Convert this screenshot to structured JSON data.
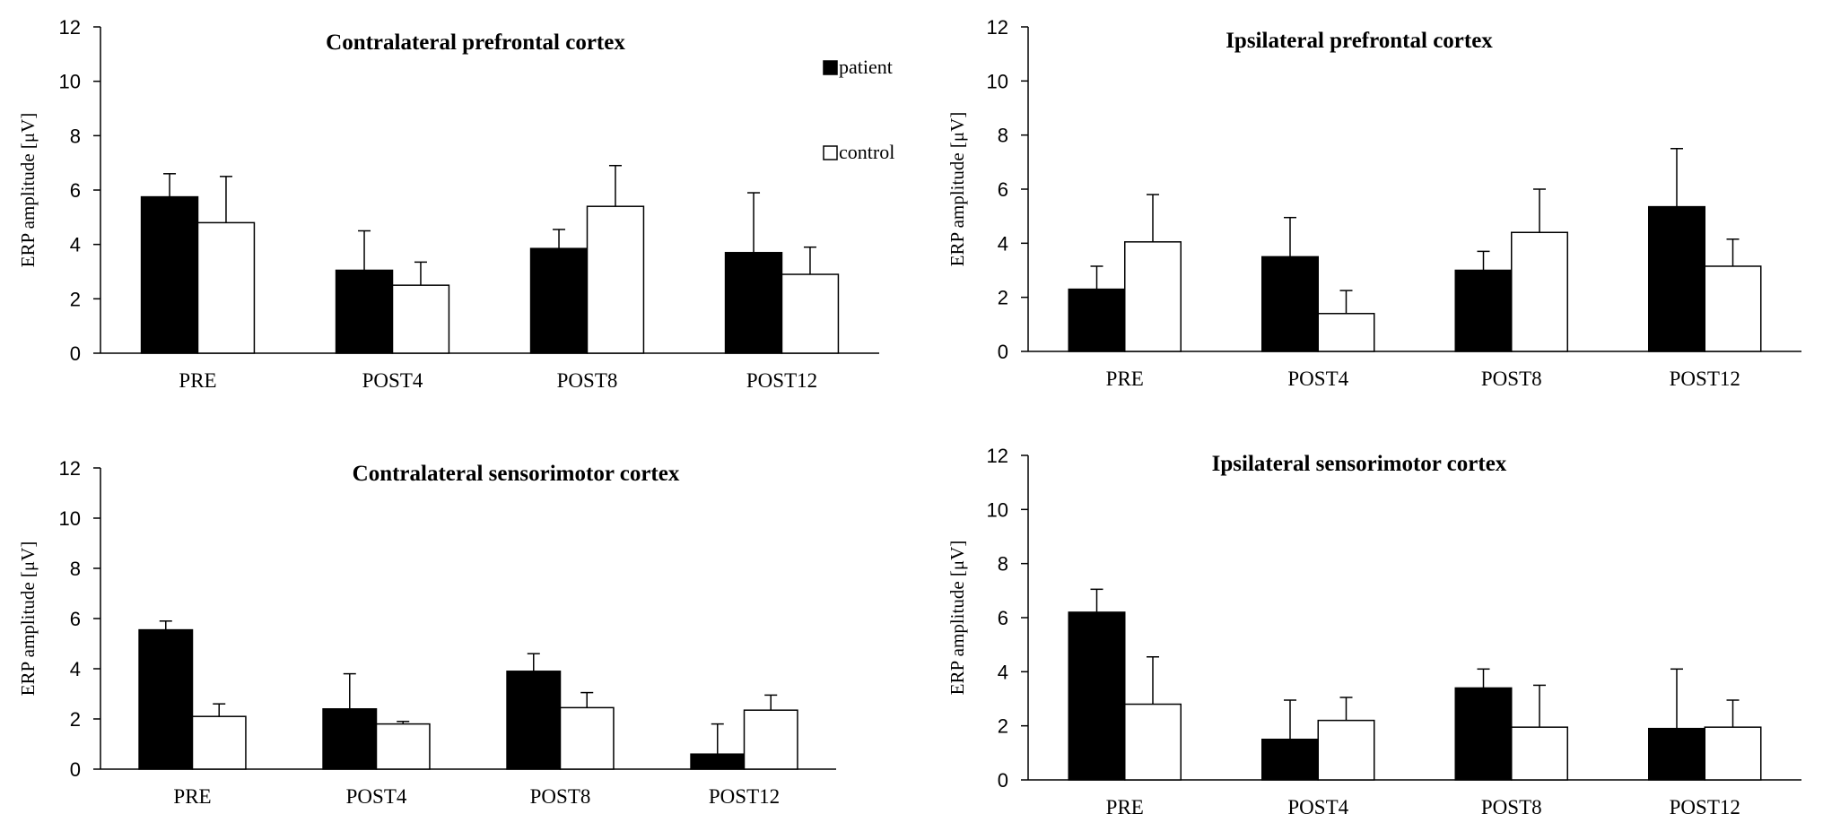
{
  "chart_data": [
    {
      "type": "bar",
      "title": "Contralateral prefrontal cortex",
      "ylabel": "ERP amplitude [μV]",
      "ylim": [
        0,
        12
      ],
      "yticks": [
        "0",
        "2",
        "4",
        "6",
        "8",
        "10",
        "12"
      ],
      "categories": [
        "PRE",
        "POST4",
        "POST8",
        "POST12"
      ],
      "series": [
        {
          "name": "patient",
          "color": "#000000",
          "values": [
            5.75,
            3.05,
            3.85,
            3.7
          ],
          "errors": [
            0.85,
            1.45,
            0.7,
            2.2
          ]
        },
        {
          "name": "control",
          "color": "#ffffff",
          "values": [
            4.8,
            2.5,
            5.4,
            2.9
          ],
          "errors": [
            1.7,
            0.85,
            1.5,
            1.0
          ]
        }
      ],
      "legend": {
        "position": "top-right",
        "entries": [
          "patient",
          "control"
        ]
      }
    },
    {
      "type": "bar",
      "title": "Ipsilateral prefrontal cortex",
      "ylabel": "ERP amplitude [μV]",
      "ylim": [
        0,
        12
      ],
      "yticks": [
        "0",
        "2",
        "4",
        "6",
        "8",
        "10",
        "12"
      ],
      "categories": [
        "PRE",
        "POST4",
        "POST8",
        "POST12"
      ],
      "series": [
        {
          "name": "patient",
          "color": "#000000",
          "values": [
            2.3,
            3.5,
            3.0,
            5.35
          ],
          "errors": [
            0.85,
            1.45,
            0.7,
            2.15
          ]
        },
        {
          "name": "control",
          "color": "#ffffff",
          "values": [
            4.05,
            1.4,
            4.4,
            3.15
          ],
          "errors": [
            1.75,
            0.85,
            1.6,
            1.0
          ]
        }
      ]
    },
    {
      "type": "bar",
      "title": "Contralateral sensorimotor cortex",
      "ylabel": "ERP amplitude [μV]",
      "ylim": [
        0,
        12
      ],
      "yticks": [
        "0",
        "2",
        "4",
        "6",
        "8",
        "10",
        "12"
      ],
      "categories": [
        "PRE",
        "POST4",
        "POST8",
        "POST12"
      ],
      "series": [
        {
          "name": "patient",
          "color": "#000000",
          "values": [
            5.55,
            2.4,
            3.9,
            0.6
          ],
          "errors": [
            0.35,
            1.4,
            0.7,
            1.2
          ]
        },
        {
          "name": "control",
          "color": "#ffffff",
          "values": [
            2.1,
            1.8,
            2.45,
            2.35
          ],
          "errors": [
            0.5,
            0.1,
            0.6,
            0.6
          ]
        }
      ]
    },
    {
      "type": "bar",
      "title": "Ipsilateral sensorimotor cortex",
      "ylabel": "ERP amplitude [μV]",
      "ylim": [
        0,
        12
      ],
      "yticks": [
        "0",
        "2",
        "4",
        "6",
        "8",
        "10",
        "12"
      ],
      "categories": [
        "PRE",
        "POST4",
        "POST8",
        "POST12"
      ],
      "series": [
        {
          "name": "patient",
          "color": "#000000",
          "values": [
            6.2,
            1.5,
            3.4,
            1.9
          ],
          "errors": [
            0.85,
            1.45,
            0.7,
            2.2
          ]
        },
        {
          "name": "control",
          "color": "#ffffff",
          "values": [
            2.8,
            2.2,
            1.95,
            1.95
          ],
          "errors": [
            1.75,
            0.85,
            1.55,
            1.0
          ]
        }
      ]
    }
  ]
}
